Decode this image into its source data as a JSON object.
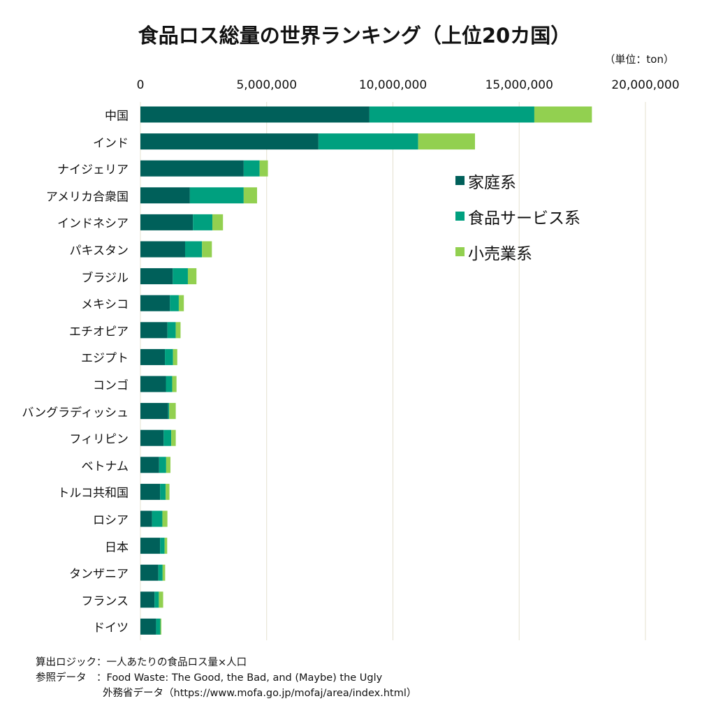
{
  "chart_data": {
    "type": "bar",
    "orientation": "horizontal",
    "stacked": true,
    "title": "食品ロス総量の世界ランキング（上位20カ国）",
    "unit_label": "（単位：ton）",
    "xlabel": "",
    "ylabel": "",
    "xlim": [
      0,
      20000000
    ],
    "xticks": [
      0,
      5000000,
      10000000,
      15000000,
      20000000
    ],
    "xtick_labels": [
      "0",
      "5,000,000",
      "10,000,000",
      "15,000,000",
      "20,000,000"
    ],
    "grid": true,
    "legend_position": "right",
    "categories": [
      "中国",
      "インド",
      "ナイジェリア",
      "アメリカ合衆国",
      "インドネシア",
      "パキスタン",
      "ブラジル",
      "メキシコ",
      "エチオピア",
      "エジプト",
      "コンゴ",
      "バングラディッシュ",
      "フィリピン",
      "ベトナム",
      "トルコ共和国",
      "ロシア",
      "日本",
      "タンザニア",
      "フランス",
      "ドイツ"
    ],
    "series": [
      {
        "name": "家庭系",
        "color": "#00605A",
        "values": [
          9070000,
          7050000,
          4090000,
          1960000,
          2080000,
          1770000,
          1280000,
          1170000,
          1070000,
          970000,
          1010000,
          1100000,
          920000,
          740000,
          780000,
          460000,
          780000,
          710000,
          560000,
          620000
        ]
      },
      {
        "name": "食品サービス系",
        "color": "#00A07F",
        "values": [
          6530000,
          3950000,
          630000,
          2130000,
          770000,
          670000,
          600000,
          350000,
          330000,
          320000,
          250000,
          40000,
          300000,
          280000,
          220000,
          410000,
          180000,
          170000,
          170000,
          170000
        ]
      },
      {
        "name": "小売業系",
        "color": "#92D050",
        "values": [
          2280000,
          2250000,
          330000,
          530000,
          420000,
          390000,
          340000,
          200000,
          190000,
          170000,
          170000,
          260000,
          180000,
          170000,
          150000,
          200000,
          100000,
          100000,
          170000,
          40000
        ]
      }
    ]
  },
  "footer": {
    "logic_key": "算出ロジック：",
    "logic_value": "一人あたりの食品ロス量×人口",
    "ref_key": "参照データ　：",
    "ref_value_1": "Food Waste: The Good, the Bad, and (Maybe) the Ugly",
    "ref_value_2": "外務省データ（https://www.mofa.go.jp/mofaj/area/index.html）"
  }
}
